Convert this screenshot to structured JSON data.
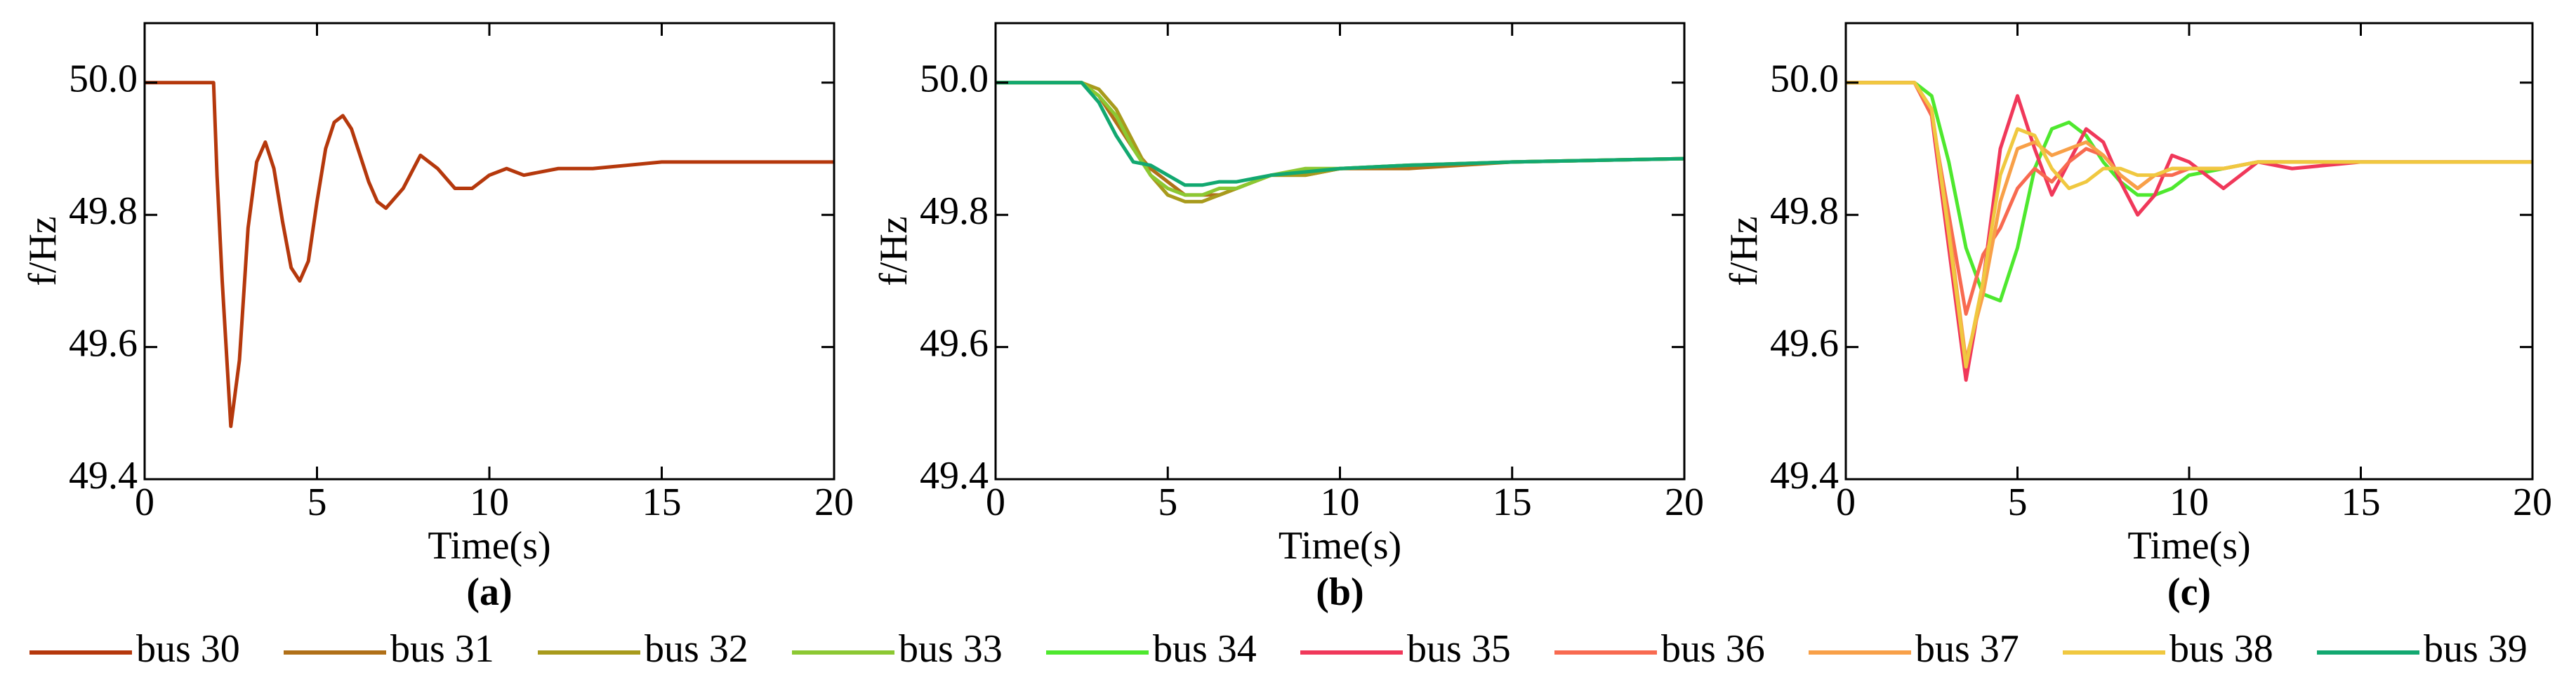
{
  "chart_data": [
    {
      "type": "line",
      "label": "(a)",
      "xlabel": "Time(s)",
      "ylabel": "f/Hz",
      "xlim": [
        0,
        20
      ],
      "xticks": [
        0,
        5,
        10,
        15,
        20
      ],
      "ylim": [
        49.4,
        50.09
      ],
      "yticks": [
        49.4,
        49.6,
        49.8,
        {
          "value": 50,
          "label": "50.0"
        }
      ],
      "x": [
        0,
        2,
        2.1,
        2.25,
        2.5,
        2.75,
        3,
        3.25,
        3.5,
        3.75,
        4,
        4.25,
        4.5,
        4.75,
        5,
        5.25,
        5.5,
        5.75,
        6,
        6.25,
        6.5,
        6.75,
        7,
        7.5,
        8,
        8.5,
        9,
        9.5,
        10,
        10.5,
        11,
        12,
        13,
        15,
        20
      ],
      "series": [
        {
          "name": "bus 30",
          "color": "#b5380c",
          "values": [
            50,
            50,
            49.86,
            49.7,
            49.48,
            49.58,
            49.78,
            49.88,
            49.91,
            49.87,
            49.79,
            49.72,
            49.7,
            49.73,
            49.82,
            49.9,
            49.94,
            49.95,
            49.93,
            49.89,
            49.85,
            49.82,
            49.81,
            49.84,
            49.89,
            49.87,
            49.84,
            49.84,
            49.86,
            49.87,
            49.86,
            49.87,
            49.87,
            49.88,
            49.88
          ]
        }
      ]
    },
    {
      "type": "line",
      "label": "(b)",
      "xlabel": "Time(s)",
      "ylabel": "f/Hz",
      "xlim": [
        0,
        20
      ],
      "xticks": [
        0,
        5,
        10,
        15,
        20
      ],
      "ylim": [
        49.4,
        50.09
      ],
      "yticks": [
        49.4,
        49.6,
        49.8,
        {
          "value": 50,
          "label": "50.0"
        }
      ],
      "x": [
        0,
        2,
        2.5,
        3,
        3.5,
        4,
        4.5,
        5,
        5.5,
        6,
        6.5,
        7,
        7.5,
        8,
        9,
        10,
        12,
        15,
        20
      ],
      "series": [
        {
          "name": "bus 31",
          "color": "#b07018",
          "values": [
            50,
            50,
            50,
            49.98,
            49.94,
            49.9,
            49.87,
            49.85,
            49.83,
            49.83,
            49.83,
            49.84,
            49.85,
            49.86,
            49.86,
            49.87,
            49.87,
            49.88,
            49.885
          ]
        },
        {
          "name": "bus 32",
          "color": "#a89a1c",
          "values": [
            50,
            50,
            50,
            49.99,
            49.96,
            49.91,
            49.86,
            49.83,
            49.82,
            49.82,
            49.83,
            49.84,
            49.85,
            49.86,
            49.86,
            49.87,
            49.875,
            49.88,
            49.885
          ]
        },
        {
          "name": "bus 33",
          "color": "#8cc832",
          "values": [
            50,
            50,
            50,
            49.98,
            49.95,
            49.9,
            49.86,
            49.84,
            49.83,
            49.83,
            49.84,
            49.84,
            49.85,
            49.86,
            49.87,
            49.87,
            49.875,
            49.88,
            49.885
          ]
        },
        {
          "name": "bus 39",
          "color": "#12a870",
          "values": [
            50,
            50,
            50,
            49.97,
            49.92,
            49.88,
            49.875,
            49.86,
            49.845,
            49.845,
            49.85,
            49.85,
            49.855,
            49.86,
            49.865,
            49.87,
            49.875,
            49.88,
            49.885
          ]
        }
      ]
    },
    {
      "type": "line",
      "label": "(c)",
      "xlabel": "Time(s)",
      "ylabel": "f/Hz",
      "xlim": [
        0,
        20
      ],
      "xticks": [
        0,
        5,
        10,
        15,
        20
      ],
      "ylim": [
        49.4,
        50.09
      ],
      "yticks": [
        49.4,
        49.6,
        49.8,
        {
          "value": 50,
          "label": "50.0"
        }
      ],
      "x": [
        0,
        2,
        2.5,
        3,
        3.5,
        4,
        4.5,
        5,
        5.5,
        6,
        6.5,
        7,
        7.5,
        8,
        8.5,
        9,
        9.5,
        10,
        11,
        12,
        13,
        15,
        20
      ],
      "series": [
        {
          "name": "bus 34",
          "color": "#4ee82e",
          "values": [
            50,
            50,
            49.98,
            49.88,
            49.75,
            49.68,
            49.67,
            49.75,
            49.87,
            49.93,
            49.94,
            49.92,
            49.88,
            49.85,
            49.83,
            49.83,
            49.84,
            49.86,
            49.87,
            49.88,
            49.88,
            49.88,
            49.88
          ]
        },
        {
          "name": "bus 35",
          "color": "#f0385a",
          "values": [
            50,
            50,
            49.95,
            49.75,
            49.55,
            49.7,
            49.9,
            49.98,
            49.9,
            49.83,
            49.88,
            49.93,
            49.91,
            49.85,
            49.8,
            49.83,
            49.89,
            49.88,
            49.84,
            49.88,
            49.87,
            49.88,
            49.88
          ]
        },
        {
          "name": "bus 36",
          "color": "#f86a50",
          "values": [
            50,
            50,
            49.95,
            49.8,
            49.65,
            49.74,
            49.78,
            49.84,
            49.87,
            49.85,
            49.88,
            49.9,
            49.89,
            49.86,
            49.84,
            49.86,
            49.86,
            49.87,
            49.87,
            49.88,
            49.88,
            49.88,
            49.88
          ]
        },
        {
          "name": "bus 37",
          "color": "#f8a048",
          "values": [
            50,
            50,
            49.96,
            49.78,
            49.58,
            49.68,
            49.82,
            49.9,
            49.91,
            49.89,
            49.9,
            49.91,
            49.89,
            49.86,
            49.84,
            49.86,
            49.87,
            49.87,
            49.87,
            49.88,
            49.88,
            49.88,
            49.88
          ]
        },
        {
          "name": "bus 38",
          "color": "#f0c840",
          "values": [
            50,
            50,
            49.96,
            49.77,
            49.57,
            49.7,
            49.86,
            49.93,
            49.92,
            49.87,
            49.84,
            49.85,
            49.87,
            49.87,
            49.86,
            49.86,
            49.87,
            49.87,
            49.87,
            49.88,
            49.88,
            49.88,
            49.88
          ]
        }
      ]
    }
  ]
}
